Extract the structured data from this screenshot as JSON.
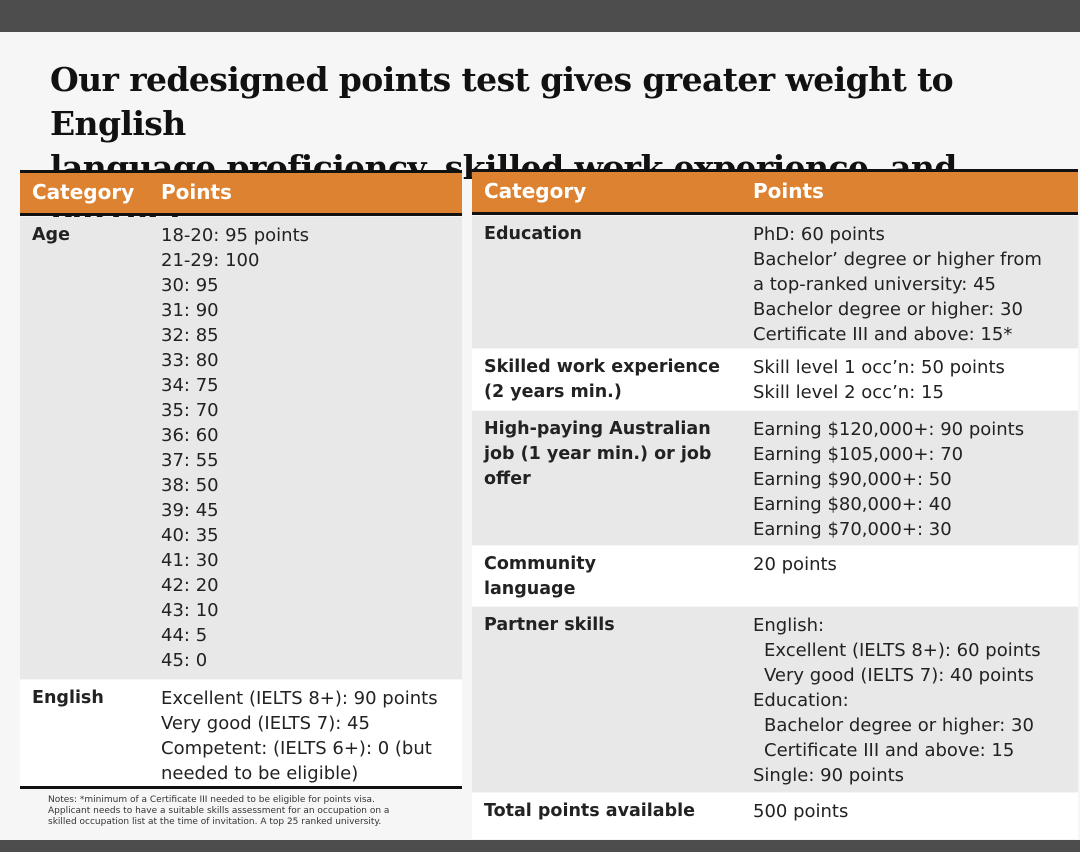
{
  "title": {
    "lines": [
      "Our redesigned points test gives greater weight to English",
      "language proficiency, skilled work experience, and partner"
    ]
  },
  "left_table": {
    "headers": [
      "Category",
      "Points"
    ],
    "rows": [
      {
        "category": [
          "Age"
        ],
        "points": [
          "18-20: 95 points",
          "21-29: 100",
          "30: 95",
          "31: 90",
          "32: 85",
          "33: 80",
          "34: 75",
          "35: 70",
          "36: 60",
          "37: 55",
          "38: 50",
          "39: 45",
          "40: 35",
          "41: 30",
          "42: 20",
          "43: 10",
          "44: 5",
          "45: 0"
        ]
      },
      {
        "category": [
          "English"
        ],
        "points": [
          "Excellent (IELTS 8+): 90 points",
          "Very good (IELTS 7): 45",
          "Competent: (IELTS 6+): 0 (but",
          "needed to be eligible)"
        ]
      }
    ],
    "notes": [
      "Notes: *minimum of a Certificate III needed to be eligible for points visa.",
      "Applicant needs to have a suitable skills assessment for an occupation on a",
      "skilled occupation list at the time of invitation.  A top 25 ranked university."
    ]
  },
  "right_table": {
    "headers": [
      "Category",
      "Points"
    ],
    "rows": [
      {
        "category": [
          "Education"
        ],
        "points": [
          "PhD: 60 points",
          "Bachelor’ degree or higher from",
          "a top-ranked university: 45",
          "Bachelor degree or higher: 30",
          "Certificate III and above: 15*"
        ]
      },
      {
        "category": [
          "Skilled work experience",
          "(2 years min.)"
        ],
        "points": [
          "Skill level 1 occ’n: 50 points",
          "Skill level 2 occ’n: 15"
        ]
      },
      {
        "category": [
          "High-paying Australian",
          "job (1 year min.) or job",
          "offer"
        ],
        "points": [
          "Earning $120,000+: 90 points",
          "Earning $105,000+: 70",
          "Earning $90,000+: 50",
          "Earning $80,000+: 40",
          "Earning $70,000+: 30"
        ]
      },
      {
        "category": [
          "Community",
          "language"
        ],
        "points": [
          "20 points"
        ]
      },
      {
        "category": [
          "Partner skills"
        ],
        "points": [
          "English:",
          [
            "Excellent (IELTS 8+): 60 points",
            "Very good (IELTS 7): 40 points"
          ],
          "Education:",
          [
            "Bachelor degree or higher: 30",
            "Certificate III and above: 15"
          ],
          "Single: 90 points"
        ]
      },
      {
        "category": [
          "Total points available"
        ],
        "points": [
          "500 points"
        ]
      }
    ]
  }
}
